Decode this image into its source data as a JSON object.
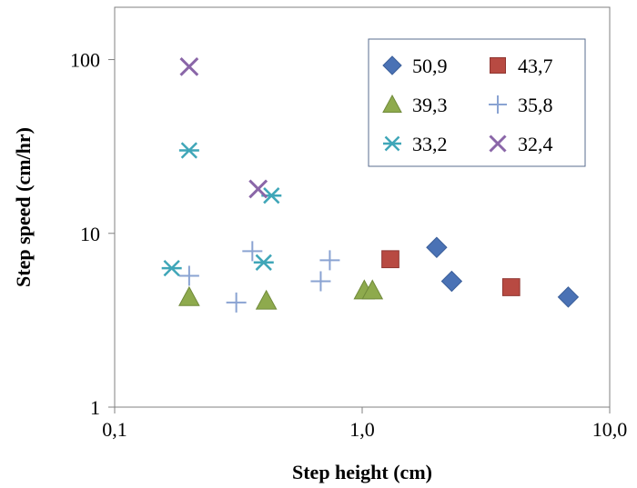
{
  "chart_data": {
    "type": "scatter",
    "title": "",
    "xlabel": "Step height (cm)",
    "ylabel": "Step speed (cm/hr)",
    "x_scale": "log",
    "y_scale": "log",
    "xlim": [
      0.1,
      10
    ],
    "ylim": [
      1,
      200
    ],
    "x_ticks": [
      0.1,
      1,
      10
    ],
    "x_tick_labels": [
      "0,1",
      "1,0",
      "10,0"
    ],
    "y_ticks": [
      1,
      10,
      100
    ],
    "y_tick_labels": [
      "1",
      "10",
      "100"
    ],
    "grid": false,
    "legend_position": "top-right",
    "series": [
      {
        "name": "50,9",
        "marker": "diamond",
        "color": "#4a72b5",
        "points": [
          [
            2.0,
            8.3
          ],
          [
            2.3,
            5.3
          ],
          [
            6.8,
            4.3
          ]
        ]
      },
      {
        "name": "43,7",
        "marker": "square",
        "color": "#b84a42",
        "points": [
          [
            1.3,
            7.1
          ],
          [
            4.0,
            4.9
          ]
        ]
      },
      {
        "name": "39,3",
        "marker": "triangle",
        "color": "#8eaa4d",
        "points": [
          [
            0.2,
            4.3
          ],
          [
            0.41,
            4.1
          ],
          [
            1.02,
            4.7
          ],
          [
            1.1,
            4.7
          ]
        ]
      },
      {
        "name": "35,8",
        "marker": "plus",
        "color": "#8aa3d2",
        "points": [
          [
            0.2,
            5.7
          ],
          [
            0.31,
            4.0
          ],
          [
            0.36,
            7.9
          ],
          [
            0.68,
            5.3
          ],
          [
            0.74,
            7.0
          ]
        ]
      },
      {
        "name": "33,2",
        "marker": "asterisk",
        "color": "#3fa6b8",
        "points": [
          [
            0.17,
            6.3
          ],
          [
            0.2,
            30.0
          ],
          [
            0.4,
            6.8
          ],
          [
            0.43,
            16.5
          ]
        ]
      },
      {
        "name": "32,4",
        "marker": "x",
        "color": "#8a66a8",
        "points": [
          [
            0.2,
            91.0
          ],
          [
            0.38,
            18.0
          ]
        ]
      }
    ]
  }
}
